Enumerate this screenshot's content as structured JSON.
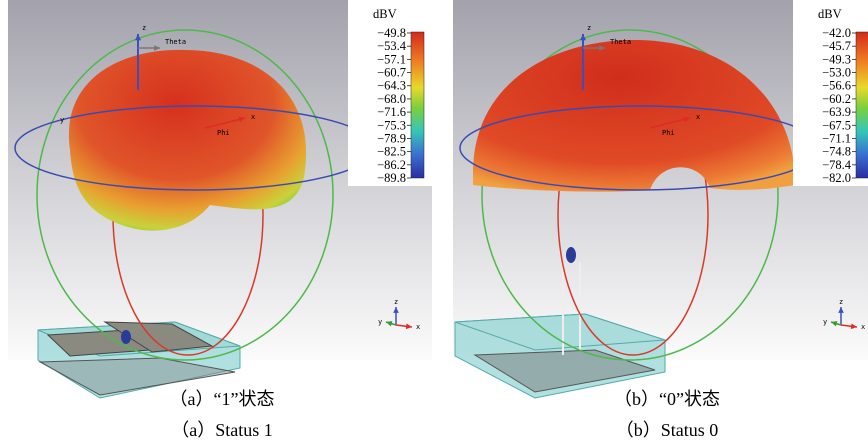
{
  "panels": [
    {
      "unit": "dBV",
      "scale": [
        "−49.8",
        "−53.4",
        "−57.1",
        "−60.7",
        "−64.3",
        "−68.0",
        "−71.6",
        "−75.3",
        "−78.9",
        "−82.5",
        "−86.2",
        "−89.8"
      ],
      "axes": {
        "z": "z",
        "theta": "Theta",
        "x": "x",
        "phi": "Phi",
        "y": "y"
      },
      "triad": {
        "z": "z",
        "y": "y",
        "x": "x"
      },
      "caption_zh": "（a）“1”状态",
      "caption_en": "（a）Status 1"
    },
    {
      "unit": "dBV",
      "scale": [
        "−42.0",
        "−45.7",
        "−49.3",
        "−53.0",
        "−56.6",
        "−60.2",
        "−63.9",
        "−67.5",
        "−71.1",
        "−74.8",
        "−78.4",
        "−82.0"
      ],
      "axes": {
        "z": "z",
        "theta": "Theta",
        "x": "x",
        "phi": "Phi"
      },
      "triad": {
        "z": "z",
        "y": "y",
        "x": "x"
      },
      "caption_zh": "（b）“0”状态",
      "caption_en": "（b）Status 0"
    }
  ]
}
